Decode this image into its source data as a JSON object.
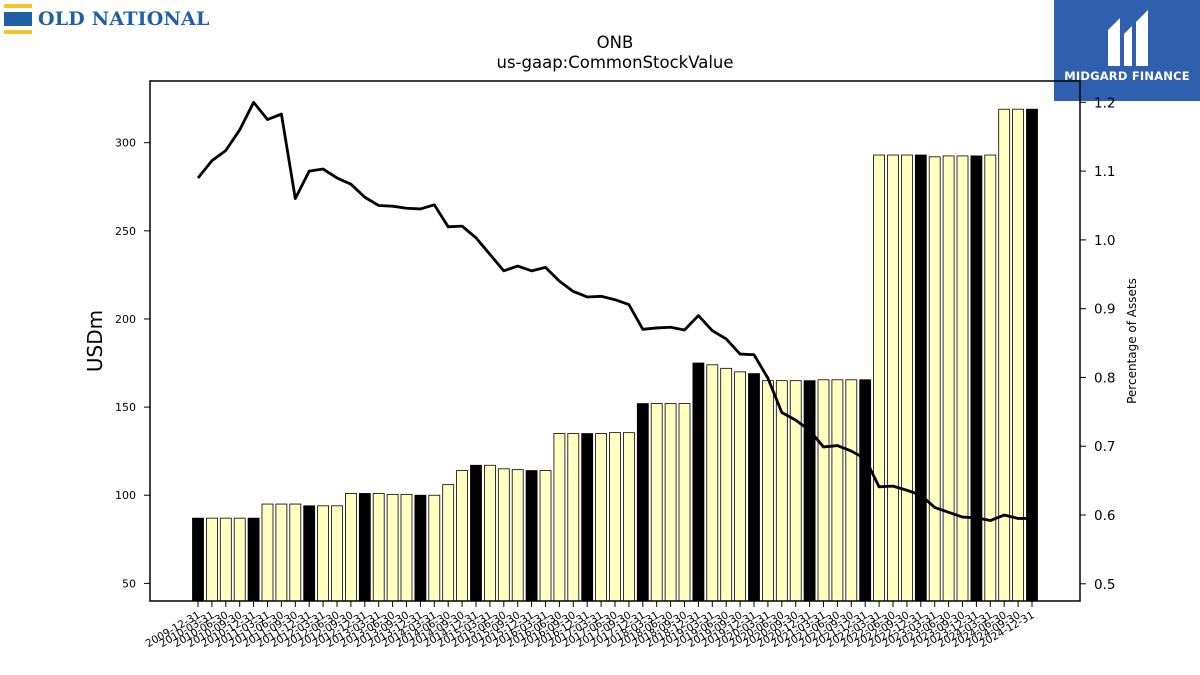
{
  "branding": {
    "left_logo_text": "OLD NATIONAL",
    "right_logo_text": "MIDGARD FINANCE",
    "left_logo_colors": {
      "gold": "#f6c22d",
      "blue": "#1f5fa6"
    },
    "right_logo_bg": "#2f5fae"
  },
  "chart_data": {
    "type": "bar",
    "title": "ONB",
    "subtitle": "us-gaap:CommonStockValue",
    "ylabel": "USDm",
    "ylabel_right": "Percentage of Assets",
    "ylim": [
      40,
      335
    ],
    "ylim_right": [
      0.475,
      1.231
    ],
    "yticks": [
      50,
      100,
      150,
      200,
      250,
      300
    ],
    "yticks_right": [
      0.5,
      0.6,
      0.7,
      0.8,
      0.9,
      1.0,
      1.1,
      1.2
    ],
    "ytick_labels_right": [
      "0.5",
      "0.6",
      "0.7",
      "0.8",
      "0.9",
      "1.0",
      "1.1",
      "1.2"
    ],
    "grid": false,
    "colors": {
      "bar_default": "#ffffc0",
      "bar_highlight": "#000000",
      "bar_edge": "#000000",
      "line": "#000000"
    },
    "categories": [
      "2009-12-31",
      "2010-03-31",
      "2010-06-30",
      "2010-09-30",
      "2010-12-31",
      "2011-03-31",
      "2011-06-30",
      "2011-09-30",
      "2011-12-31",
      "2012-03-31",
      "2012-06-30",
      "2012-09-30",
      "2012-12-31",
      "2013-03-31",
      "2013-06-30",
      "2013-09-30",
      "2013-12-31",
      "2014-03-31",
      "2014-06-30",
      "2014-09-30",
      "2014-12-31",
      "2015-03-31",
      "2015-06-30",
      "2015-09-30",
      "2015-12-31",
      "2016-03-31",
      "2016-06-30",
      "2016-09-30",
      "2016-12-31",
      "2017-03-31",
      "2017-06-30",
      "2017-09-30",
      "2017-12-31",
      "2018-03-31",
      "2018-06-30",
      "2018-09-30",
      "2018-12-31",
      "2019-03-31",
      "2019-06-30",
      "2019-09-30",
      "2019-12-31",
      "2020-03-31",
      "2020-06-30",
      "2020-09-30",
      "2020-12-31",
      "2021-03-31",
      "2021-06-30",
      "2021-09-30",
      "2021-12-31",
      "2022-03-31",
      "2022-06-30",
      "2022-09-30",
      "2022-12-31",
      "2023-03-31",
      "2023-06-30",
      "2023-09-30",
      "2023-12-31",
      "2024-03-31",
      "2024-06-30",
      "2024-09-30",
      "2024-12-31"
    ],
    "tick_labels": [
      "2009-12-31",
      "2010-03-31",
      "2010-06-30",
      "2010-09-30",
      "2010-12-31",
      "2011-03-31",
      "2011-06-30",
      "2011-09-30",
      "2011-12-31",
      "2012-03-31",
      "2012-06-30",
      "2012-09-30",
      "2012-12-31",
      "2013-03-31",
      "2013-06-30",
      "2013-09-30",
      "2013-12-31",
      "2014-03-31",
      "2014-06-30",
      "2014-09-30",
      "2014-12-31",
      "2015-03-31",
      "2015-06-30",
      "2015-09-30",
      "2015-12-31",
      "2016-03-31",
      "2016-06-30",
      "2016-09-30",
      "2016-12-31",
      "2017-03-31",
      "2017-06-30",
      "2017-09-30",
      "2017-12-31",
      "2018-03-31",
      "2018-06-30",
      "2018-09-30",
      "2018-12-31",
      "2019-03-31",
      "2019-06-30",
      "2019-09-30",
      "2019-12-31",
      "2020-03-31",
      "2020-06-30",
      "2020-09-30",
      "2020-12-31",
      "2021-03-31",
      "2021-06-30",
      "2021-09-30",
      "2021-12-31",
      "2022-03-31",
      "2022-06-30",
      "2022-09-30",
      "2022-12-31",
      "2023-03-31",
      "2023-06-30",
      "2023-09-30",
      "2023-12-31",
      "2024-03-31",
      "2024-06-30",
      "2024-09-30",
      "2024-12-31"
    ],
    "series": [
      {
        "kind": "bar",
        "axis": "left",
        "values": [
          87,
          87,
          87,
          87,
          87,
          95,
          95,
          95,
          94,
          94,
          94,
          101,
          101,
          101,
          100.5,
          100.5,
          100,
          100,
          106,
          114,
          117,
          117,
          115,
          114.5,
          114,
          114,
          135,
          135,
          135,
          135,
          135.5,
          135.5,
          152,
          152,
          152,
          152,
          175,
          174,
          172,
          170,
          169,
          165,
          165,
          165,
          165,
          165.5,
          165.5,
          165.5,
          165.5,
          293,
          293,
          293,
          293,
          292,
          292.5,
          292.5,
          292.5,
          293,
          319,
          319,
          319
        ]
      },
      {
        "kind": "line",
        "axis": "right",
        "values": [
          1.09,
          1.115,
          1.13,
          1.16,
          1.2,
          1.175,
          1.183,
          1.06,
          1.1,
          1.103,
          1.09,
          1.081,
          1.062,
          1.05,
          1.049,
          1.046,
          1.045,
          1.051,
          1.019,
          1.02,
          1.003,
          0.979,
          0.955,
          0.962,
          0.955,
          0.96,
          0.94,
          0.925,
          0.917,
          0.918,
          0.913,
          0.906,
          0.87,
          0.872,
          0.873,
          0.869,
          0.89,
          0.868,
          0.856,
          0.834,
          0.833,
          0.799,
          0.749,
          0.738,
          0.723,
          0.699,
          0.701,
          0.693,
          0.682,
          0.641,
          0.642,
          0.636,
          0.629,
          0.611,
          0.604,
          0.597,
          0.596,
          0.592,
          0.6,
          0.595,
          0.595
        ]
      }
    ],
    "highlight_bars": [
      0,
      4,
      8,
      12,
      16,
      20,
      24,
      28,
      32,
      36,
      40,
      44,
      48,
      52,
      56,
      60
    ]
  }
}
